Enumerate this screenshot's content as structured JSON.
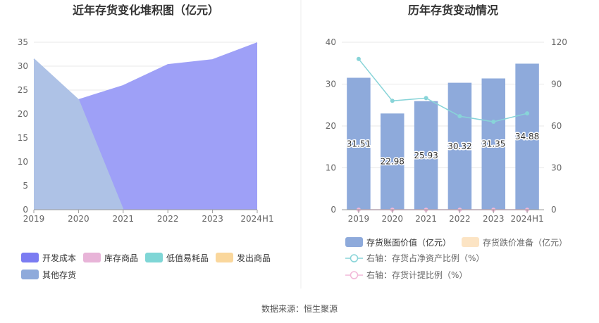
{
  "source_text": "数据来源：恒生聚源",
  "chart_data": [
    {
      "type": "area",
      "title": "近年存货变化堆积图（亿元）",
      "categories": [
        "2019",
        "2020",
        "2021",
        "2022",
        "2023",
        "2024H1"
      ],
      "ylim": [
        0,
        35
      ],
      "y_ticks": [
        0,
        5,
        10,
        15,
        20,
        25,
        30,
        35
      ],
      "grid": true,
      "legend_position": "bottom",
      "legend": [
        {
          "name": "开发成本",
          "color": "#7b7cf2"
        },
        {
          "name": "库存商品",
          "color": "#e8b4d8"
        },
        {
          "name": "低值易耗品",
          "color": "#7fd6d6"
        },
        {
          "name": "发出商品",
          "color": "#fad79c"
        },
        {
          "name": "其他存货",
          "color": "#8eaadb"
        }
      ],
      "series": [
        {
          "name": "开发成本",
          "color": "#9ea0f7",
          "values": [
            null,
            22.98,
            25.93,
            30.32,
            31.35,
            34.88
          ]
        },
        {
          "name": "其他存货",
          "color": "#aec2e6",
          "values": [
            31.51,
            22.98,
            0,
            null,
            null,
            null
          ]
        }
      ]
    },
    {
      "type": "bar",
      "title": "历年存货变动情况",
      "categories": [
        "2019",
        "2020",
        "2021",
        "2022",
        "2023",
        "2024H1"
      ],
      "ylim_left": [
        0,
        40
      ],
      "y_ticks_left": [
        0,
        10,
        20,
        30,
        40
      ],
      "ylim_right": [
        0,
        120
      ],
      "y_ticks_right": [
        0,
        30,
        60,
        90,
        120
      ],
      "grid": true,
      "legend_position": "bottom",
      "series": [
        {
          "name": "存货账面价值（亿元）",
          "type": "bar",
          "axis": "left",
          "color": "#8eaadb",
          "values": [
            31.51,
            22.98,
            25.93,
            30.32,
            31.35,
            34.88
          ],
          "labels": [
            "31.51",
            "22.98",
            "25.93",
            "30.32",
            "31.35",
            "34.88"
          ]
        },
        {
          "name": "存货跌价准备（亿元）",
          "type": "bar",
          "axis": "left",
          "color": "#fce4c4",
          "values": [
            0,
            0,
            0,
            0,
            0,
            0
          ]
        },
        {
          "name": "右轴：存货占净资产比例（%）",
          "type": "line",
          "axis": "right",
          "color": "#88d4d8",
          "values": [
            108,
            78,
            80,
            67,
            63,
            69
          ]
        },
        {
          "name": "右轴：存货计提比例（%）",
          "type": "line",
          "axis": "right",
          "color": "#f2b8d8",
          "values": [
            0,
            0,
            0,
            0,
            0,
            0
          ]
        }
      ]
    }
  ]
}
